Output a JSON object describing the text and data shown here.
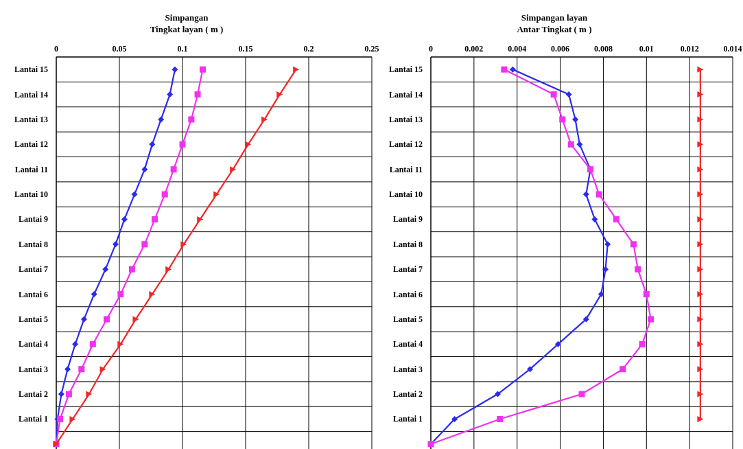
{
  "chart_data": [
    {
      "type": "line",
      "orientation": "horizontal",
      "xlabel": "Simpangan\nTingkat layan ( m )",
      "categories": [
        "Lantai 15",
        "Lantai 14",
        "Lantai 13",
        "Lantai 12",
        "Lantai 11",
        "Lantai 10",
        "Lantai 9",
        "Lantai 8",
        "Lantai 7",
        "Lantai 6",
        "Lantai 5",
        "Lantai 4",
        "Lantai 3",
        "Lantai 2",
        "Lantai 1",
        null
      ],
      "xlim": [
        0,
        0.25
      ],
      "xticks": [
        0,
        0.05,
        0.1,
        0.15,
        0.2,
        0.25
      ],
      "grid": true,
      "series": [
        {
          "color": "#2b2bf0",
          "marker": "diamond",
          "values": [
            0.094,
            0.09,
            0.083,
            0.076,
            0.07,
            0.062,
            0.054,
            0.047,
            0.039,
            0.03,
            0.022,
            0.015,
            0.009,
            0.004,
            0.001,
            0
          ]
        },
        {
          "color": "#f032f0",
          "marker": "square",
          "values": [
            0.116,
            0.112,
            0.107,
            0.1,
            0.093,
            0.086,
            0.078,
            0.07,
            0.06,
            0.051,
            0.04,
            0.029,
            0.02,
            0.01,
            0.003,
            0
          ]
        },
        {
          "color": "#f02828",
          "marker": "triangle",
          "values": [
            0.19,
            0.177,
            0.165,
            0.152,
            0.14,
            0.127,
            0.114,
            0.101,
            0.089,
            0.076,
            0.063,
            0.051,
            0.037,
            0.026,
            0.013,
            0
          ]
        }
      ]
    },
    {
      "type": "line",
      "orientation": "horizontal",
      "xlabel": "Simpangan layan\nAntar Tingkat ( m )",
      "categories": [
        "Lantai 15",
        "Lantai 14",
        "Lantai 13",
        "Lantai 12",
        "Lantai 11",
        "Lantai 10",
        "Lantai 9",
        "Lantai 8",
        "Lantai 7",
        "Lantai 6",
        "Lantai 5",
        "Lantai 4",
        "Lantai 3",
        "Lantai 2",
        "Lantai 1",
        null
      ],
      "xlim": [
        0,
        0.014
      ],
      "xticks": [
        0,
        0.002,
        0.004,
        0.006,
        0.008,
        0.01,
        0.012,
        0.014
      ],
      "grid": true,
      "series": [
        {
          "color": "#2b2bf0",
          "marker": "diamond",
          "values": [
            0.0038,
            0.0064,
            0.0067,
            0.0069,
            0.0074,
            0.0072,
            0.0076,
            0.0082,
            0.0081,
            0.0079,
            0.0072,
            0.0059,
            0.0046,
            0.0031,
            0.0011,
            0
          ]
        },
        {
          "color": "#f032f0",
          "marker": "square",
          "values": [
            0.0034,
            0.0057,
            0.0061,
            0.0065,
            0.0074,
            0.0078,
            0.0086,
            0.0094,
            0.0096,
            0.01,
            0.0102,
            0.0098,
            0.0089,
            0.007,
            0.0032,
            0
          ]
        },
        {
          "color": "#f02828",
          "marker": "triangle",
          "values": [
            0.0125,
            0.0125,
            0.0125,
            0.0125,
            0.0125,
            0.0125,
            0.0125,
            0.0125,
            0.0125,
            0.0125,
            0.0125,
            0.0125,
            0.0125,
            0.0125,
            0.0125,
            null
          ]
        }
      ]
    }
  ]
}
